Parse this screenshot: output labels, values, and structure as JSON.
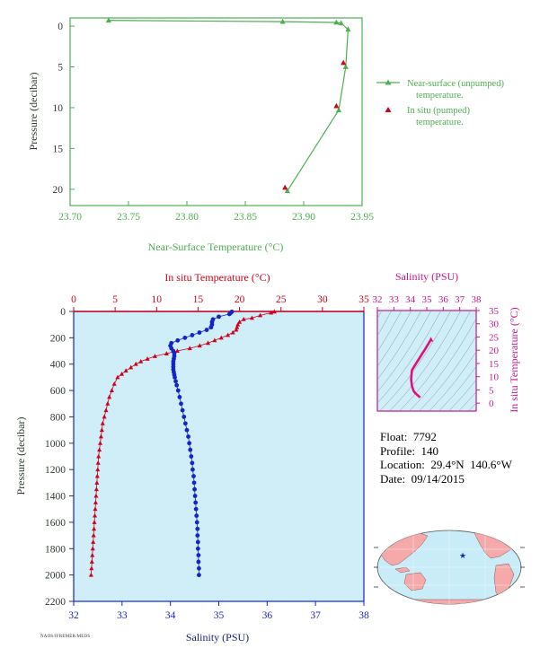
{
  "float_info": {
    "float_line": "Float:  7792",
    "profile_line": "Profile:  140",
    "location_line": "Location:  29.4°N  140.6°W",
    "date_line": "Date:  09/14/2015"
  },
  "stamp_text": "NAOS/IFREMER/MEDS",
  "colors": {
    "green": "#4caf50",
    "red": "#d0021b",
    "blue": "#1524c8",
    "magenta": "#c2188b",
    "plot_bg": "#cfeef7",
    "land": "#f5a9a9",
    "ocean": "#c8ecf8"
  },
  "chart_data": [
    {
      "id": "near_surface",
      "type": "line",
      "xlabel": "Near-Surface Temperature (°C)",
      "ylabel": "Pressure (decibar)",
      "xlim": [
        23.7,
        23.95
      ],
      "ylim": [
        22,
        -1
      ],
      "xticks": [
        "23.70",
        "23.75",
        "23.80",
        "23.85",
        "23.90",
        "23.95"
      ],
      "yticks": [
        "0",
        "5",
        "10",
        "15",
        "20"
      ],
      "legend_position": "right",
      "legend": [
        "Near-surface (unpumped)\ntemperature.",
        "In situ (pumped)\ntemperature."
      ],
      "series": [
        {
          "name": "Near-surface (unpumped) temperature.",
          "marker": "triangle",
          "color": "#4caf50",
          "points": [
            [
              23.733,
              -0.7
            ],
            [
              23.882,
              -0.55
            ],
            [
              23.928,
              -0.45
            ],
            [
              23.932,
              -0.35
            ],
            [
              23.938,
              0.4
            ],
            [
              23.936,
              5.0
            ],
            [
              23.93,
              10.3
            ],
            [
              23.886,
              20.2
            ]
          ]
        },
        {
          "name": "In situ (pumped) temperature.",
          "marker": "triangle",
          "color": "#d0021b",
          "points": [
            [
              23.934,
              4.5
            ],
            [
              23.928,
              9.8
            ],
            [
              23.884,
              19.8
            ]
          ]
        }
      ]
    },
    {
      "id": "profile",
      "type": "scatter",
      "title_top": "In situ Temperature (°C)",
      "xlabel": "Salinity (PSU)",
      "ylabel": "Pressure (decibar)",
      "temp_lim": [
        0,
        35
      ],
      "sal_lim": [
        32,
        38
      ],
      "pres_lim": [
        2200,
        0
      ],
      "temp_ticks": [
        "0",
        "5",
        "10",
        "15",
        "20",
        "25",
        "30",
        "35"
      ],
      "sal_ticks": [
        "32",
        "33",
        "34",
        "35",
        "36",
        "37",
        "38"
      ],
      "pres_ticks": [
        "0",
        "200",
        "400",
        "600",
        "800",
        "1000",
        "1200",
        "1400",
        "1600",
        "1800",
        "2000",
        "2200"
      ],
      "temperature": [
        [
          24.2,
          2
        ],
        [
          23.8,
          10
        ],
        [
          22.5,
          30
        ],
        [
          21.5,
          50
        ],
        [
          20.5,
          60
        ],
        [
          20.0,
          80
        ],
        [
          19.8,
          100
        ],
        [
          19.7,
          120
        ],
        [
          19.6,
          140
        ],
        [
          19.2,
          160
        ],
        [
          18.6,
          180
        ],
        [
          17.8,
          200
        ],
        [
          17.0,
          220
        ],
        [
          16.2,
          240
        ],
        [
          15.2,
          260
        ],
        [
          14.0,
          280
        ],
        [
          12.5,
          300
        ],
        [
          11.2,
          320
        ],
        [
          9.8,
          340
        ],
        [
          8.9,
          360
        ],
        [
          8.1,
          380
        ],
        [
          7.5,
          400
        ],
        [
          6.9,
          425
        ],
        [
          6.3,
          450
        ],
        [
          5.8,
          475
        ],
        [
          5.3,
          500
        ],
        [
          4.9,
          550
        ],
        [
          4.6,
          600
        ],
        [
          4.3,
          650
        ],
        [
          4.1,
          700
        ],
        [
          3.9,
          750
        ],
        [
          3.7,
          800
        ],
        [
          3.5,
          850
        ],
        [
          3.4,
          900
        ],
        [
          3.3,
          950
        ],
        [
          3.2,
          1000
        ],
        [
          3.1,
          1050
        ],
        [
          3.0,
          1100
        ],
        [
          2.95,
          1150
        ],
        [
          2.9,
          1200
        ],
        [
          2.85,
          1250
        ],
        [
          2.8,
          1300
        ],
        [
          2.75,
          1350
        ],
        [
          2.7,
          1400
        ],
        [
          2.65,
          1450
        ],
        [
          2.6,
          1500
        ],
        [
          2.55,
          1550
        ],
        [
          2.5,
          1600
        ],
        [
          2.45,
          1650
        ],
        [
          2.4,
          1700
        ],
        [
          2.35,
          1750
        ],
        [
          2.3,
          1800
        ],
        [
          2.25,
          1850
        ],
        [
          2.2,
          1900
        ],
        [
          2.15,
          1950
        ],
        [
          2.1,
          2000
        ]
      ],
      "salinity": [
        [
          35.27,
          2
        ],
        [
          35.25,
          10
        ],
        [
          35.22,
          20
        ],
        [
          35.0,
          40
        ],
        [
          34.88,
          60
        ],
        [
          34.86,
          80
        ],
        [
          34.86,
          100
        ],
        [
          34.84,
          120
        ],
        [
          34.75,
          140
        ],
        [
          34.6,
          160
        ],
        [
          34.45,
          180
        ],
        [
          34.3,
          200
        ],
        [
          34.15,
          220
        ],
        [
          34.02,
          240
        ],
        [
          34.0,
          260
        ],
        [
          34.02,
          280
        ],
        [
          34.06,
          300
        ],
        [
          34.08,
          320
        ],
        [
          34.08,
          340
        ],
        [
          34.07,
          360
        ],
        [
          34.06,
          380
        ],
        [
          34.06,
          400
        ],
        [
          34.06,
          420
        ],
        [
          34.06,
          440
        ],
        [
          34.07,
          460
        ],
        [
          34.08,
          480
        ],
        [
          34.09,
          500
        ],
        [
          34.11,
          530
        ],
        [
          34.13,
          560
        ],
        [
          34.16,
          600
        ],
        [
          34.19,
          650
        ],
        [
          34.22,
          700
        ],
        [
          34.25,
          750
        ],
        [
          34.28,
          800
        ],
        [
          34.31,
          850
        ],
        [
          34.34,
          900
        ],
        [
          34.37,
          950
        ],
        [
          34.39,
          1000
        ],
        [
          34.41,
          1050
        ],
        [
          34.43,
          1100
        ],
        [
          34.45,
          1150
        ],
        [
          34.46,
          1200
        ],
        [
          34.48,
          1250
        ],
        [
          34.49,
          1300
        ],
        [
          34.5,
          1350
        ],
        [
          34.51,
          1400
        ],
        [
          34.52,
          1450
        ],
        [
          34.53,
          1500
        ],
        [
          34.54,
          1550
        ],
        [
          34.55,
          1600
        ],
        [
          34.56,
          1650
        ],
        [
          34.56,
          1700
        ],
        [
          34.57,
          1750
        ],
        [
          34.57,
          1800
        ],
        [
          34.58,
          1850
        ],
        [
          34.58,
          1900
        ],
        [
          34.59,
          1950
        ],
        [
          34.59,
          2000
        ]
      ]
    },
    {
      "id": "ts_diagram",
      "type": "line",
      "title_top": "Salinity (PSU)",
      "ylabel": "In situ Temperature (°C)",
      "xlim": [
        32,
        38
      ],
      "ylim": [
        -3,
        35
      ],
      "xticks": [
        "32",
        "33",
        "34",
        "35",
        "36",
        "37",
        "38"
      ],
      "yticks": [
        "0",
        "5",
        "10",
        "15",
        "20",
        "25",
        "30",
        "35"
      ],
      "ts_points": [
        [
          35.25,
          24.0
        ],
        [
          34.86,
          20.0
        ],
        [
          34.7,
          18.5
        ],
        [
          34.4,
          15.5
        ],
        [
          34.1,
          12.5
        ],
        [
          34.05,
          9.0
        ],
        [
          34.1,
          6.5
        ],
        [
          34.2,
          4.6
        ],
        [
          34.3,
          3.8
        ],
        [
          34.4,
          3.2
        ],
        [
          34.48,
          2.8
        ],
        [
          34.55,
          2.4
        ],
        [
          34.59,
          2.1
        ]
      ]
    }
  ],
  "map": {
    "marker_lon": -140.6,
    "marker_lat": 29.4
  }
}
